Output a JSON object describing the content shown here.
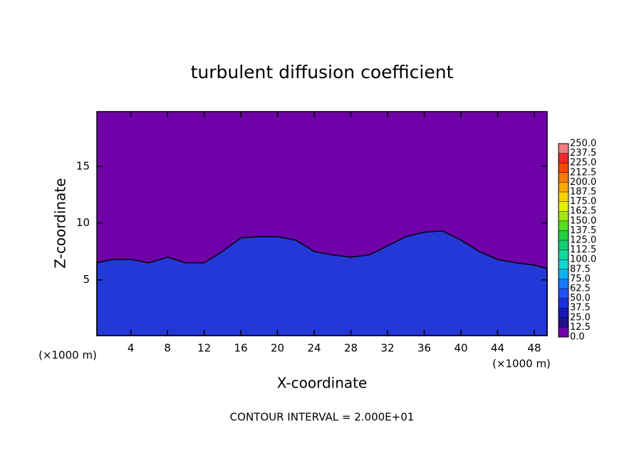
{
  "chart_data": {
    "type": "area",
    "title": "turbulent diffusion coefficient",
    "x_label": "X-coordinate",
    "y_label": "Z-coordinate",
    "x_unit": "(×1000 m)",
    "y_unit": "(×1000 m)",
    "note": "CONTOUR INTERVAL = 2.000E+01",
    "background_color": "#7000a8",
    "x": [
      0.3,
      2,
      4,
      6,
      8,
      10,
      12,
      14,
      16,
      18,
      20,
      22,
      24,
      26,
      28,
      30,
      32,
      34,
      36,
      38,
      40,
      42,
      44,
      46,
      48,
      49.4
    ],
    "series": [
      {
        "color": "#2438d8",
        "values": [
          6.5,
          6.8,
          6.8,
          6.5,
          7,
          6.5,
          6.5,
          7.5,
          8.7,
          8.8,
          8.8,
          8.5,
          7.5,
          7.2,
          7,
          7.2,
          8,
          8.8,
          9.2,
          9.3,
          8.5,
          7.5,
          6.8,
          6.5,
          6.3,
          6
        ]
      }
    ],
    "xlim": [
      0.3,
      49.4
    ],
    "ylim": [
      0.1,
      19.8
    ],
    "xticks": [
      4,
      8,
      12,
      16,
      20,
      24,
      28,
      32,
      36,
      40,
      44,
      48
    ],
    "yticks": [
      5,
      10,
      15
    ],
    "colorbar_ticks": [
      {
        "value": 0,
        "label": "0.0"
      },
      {
        "value": 12.5,
        "label": "12.5"
      },
      {
        "value": 25,
        "label": "25.0"
      },
      {
        "value": 37.5,
        "label": "37.5"
      },
      {
        "value": 50,
        "label": "50.0"
      },
      {
        "value": 62.5,
        "label": "62.5"
      },
      {
        "value": 75,
        "label": "75.0"
      },
      {
        "value": 87.5,
        "label": "87.5"
      },
      {
        "value": 100,
        "label": "100.0"
      },
      {
        "value": 112.5,
        "label": "112.5"
      },
      {
        "value": 125,
        "label": "125.0"
      },
      {
        "value": 137.5,
        "label": "137.5"
      },
      {
        "value": 150,
        "label": "150.0"
      },
      {
        "value": 162.5,
        "label": "162.5"
      },
      {
        "value": 175,
        "label": "175.0"
      },
      {
        "value": 187.5,
        "label": "187.5"
      },
      {
        "value": 200,
        "label": "200.0"
      },
      {
        "value": 212.5,
        "label": "212.5"
      },
      {
        "value": 225,
        "label": "225.0"
      },
      {
        "value": 237.5,
        "label": "237.5"
      },
      {
        "value": 250,
        "label": "250.0"
      }
    ],
    "colorbar_colors": [
      "#7000a8",
      "#20108c",
      "#1818b8",
      "#1c30dc",
      "#2050f0",
      "#1878ff",
      "#10b0f0",
      "#10d8d0",
      "#10d8a0",
      "#10d070",
      "#20d040",
      "#50e020",
      "#a0e810",
      "#e0f000",
      "#f8d000",
      "#f8a800",
      "#f87800",
      "#f84800",
      "#f02828",
      "#f08080"
    ]
  }
}
